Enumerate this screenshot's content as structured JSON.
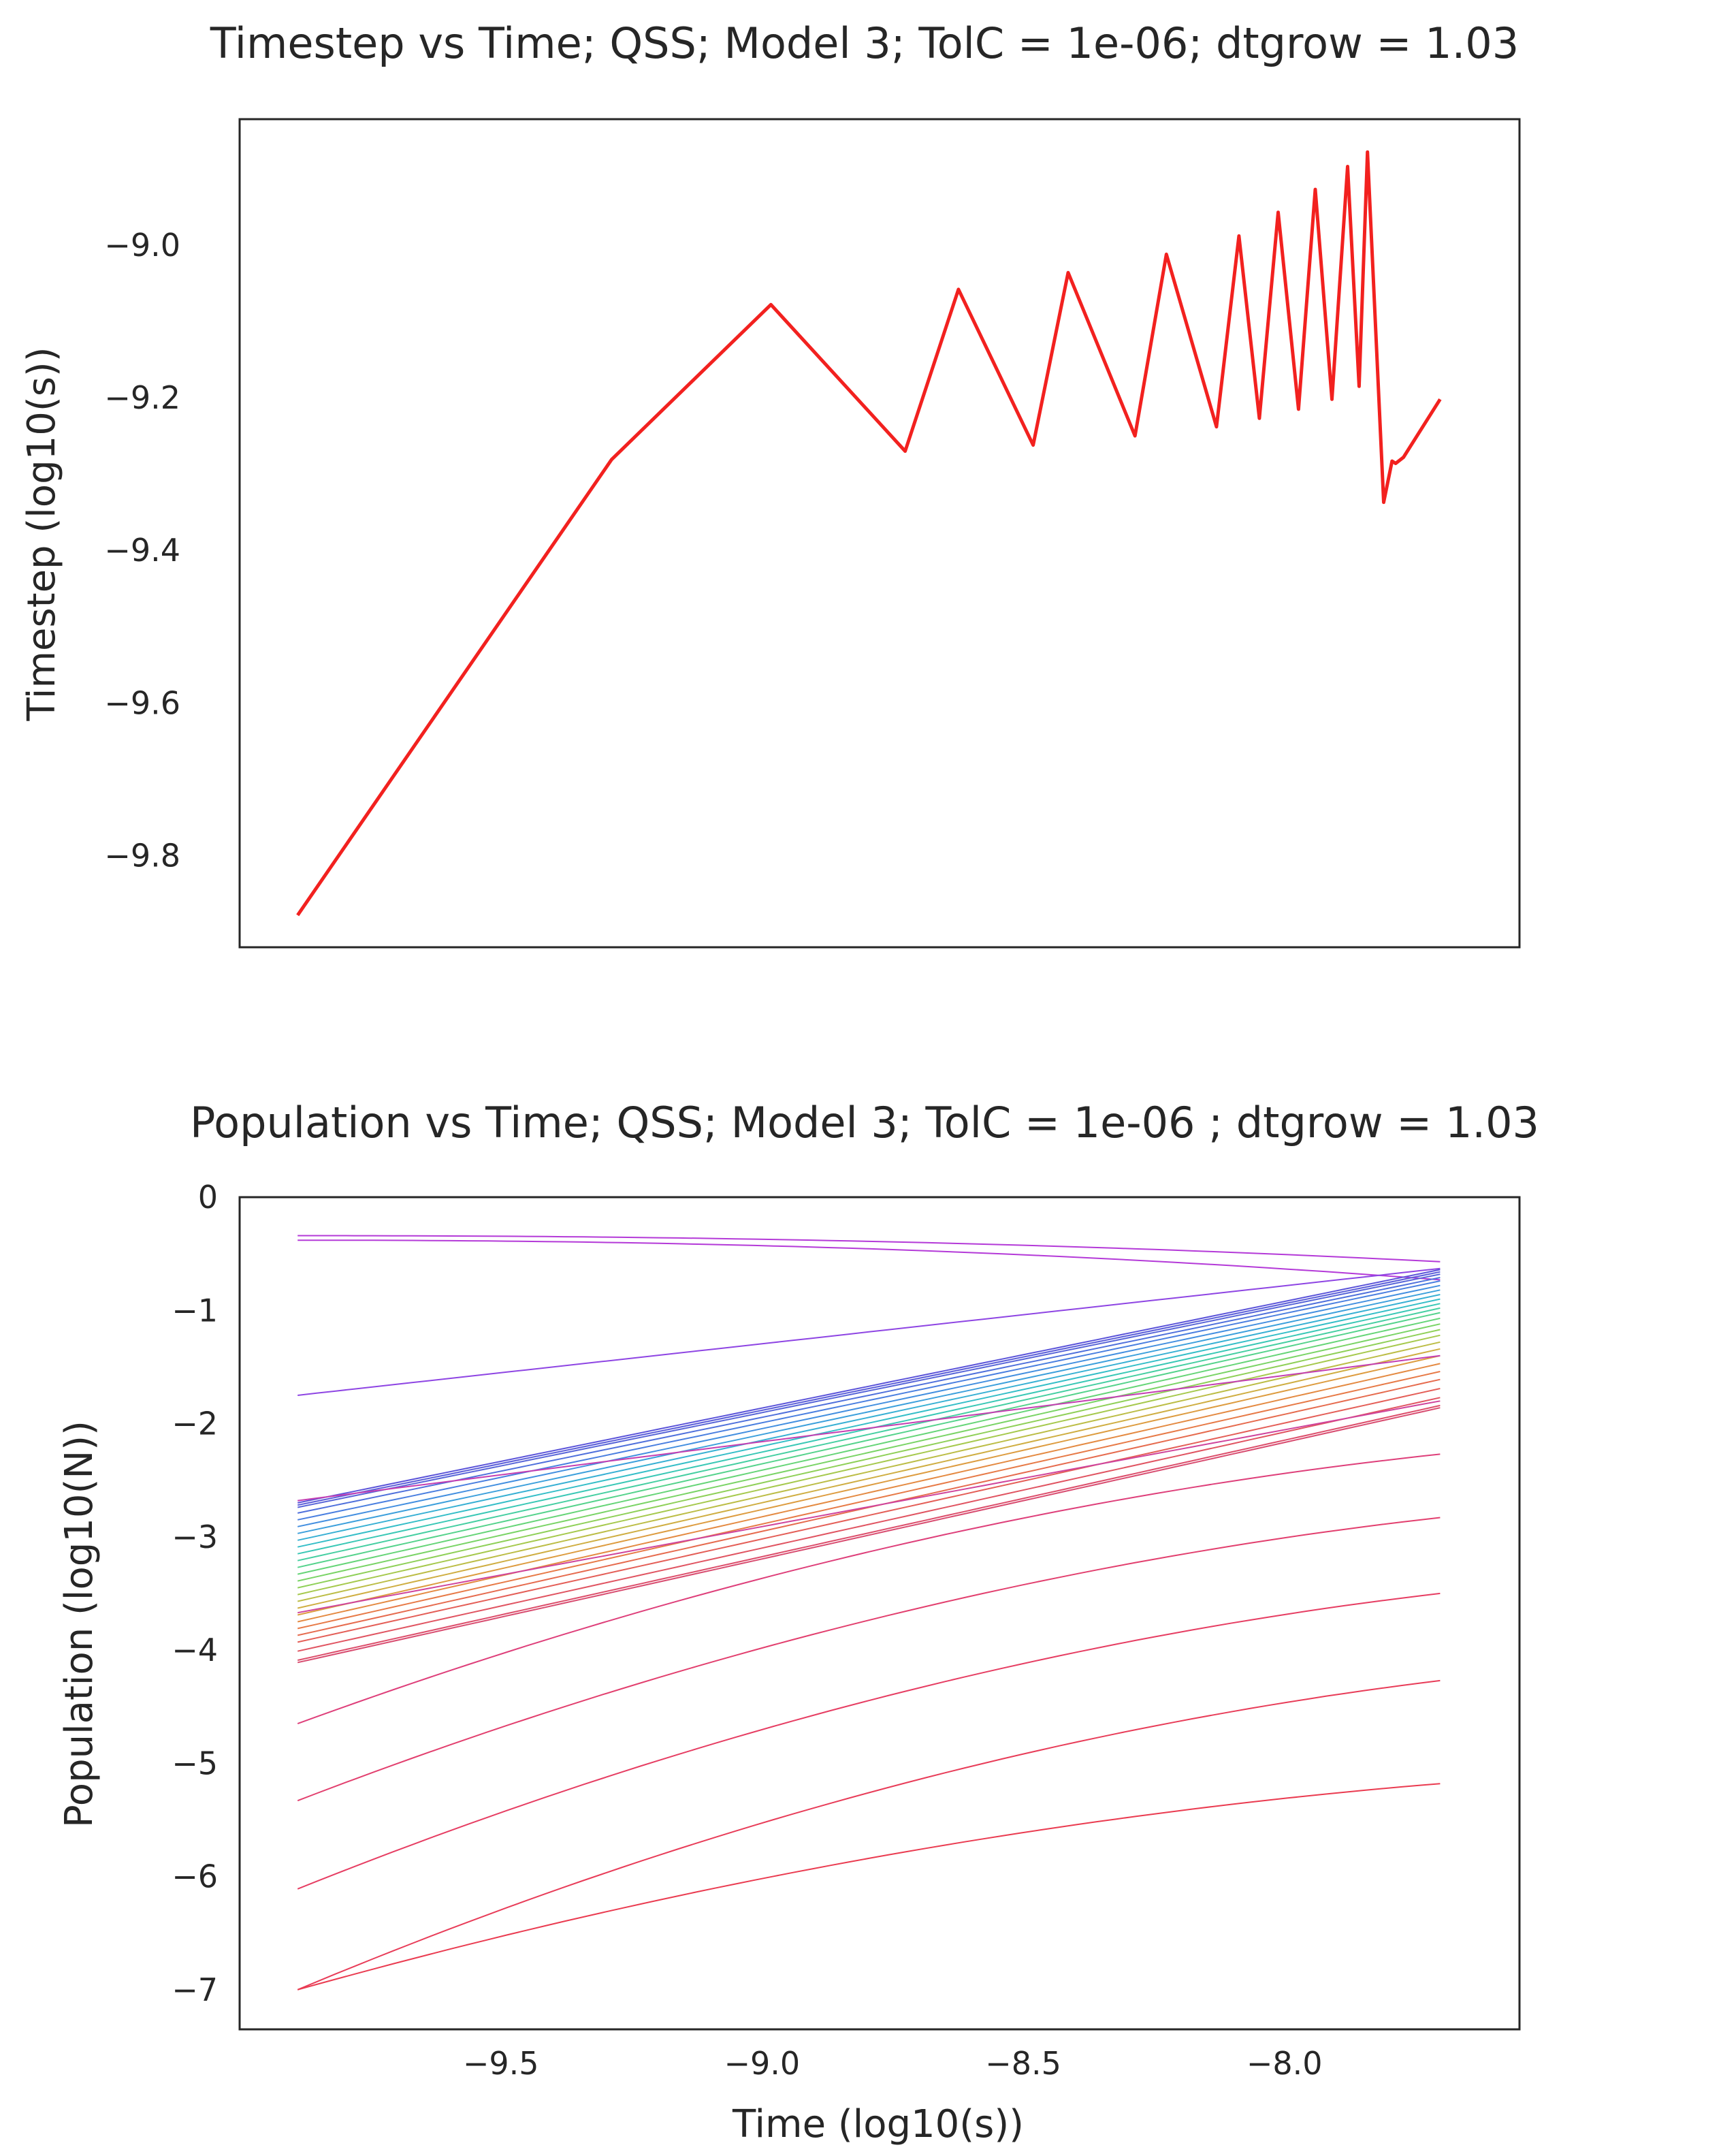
{
  "chart_data": [
    {
      "type": "line",
      "title": "Timestep vs Time; QSS; Model 3; TolC = 1e-06; dtgrow = 1.03",
      "xlabel": "",
      "ylabel": "Timestep (log10(s))",
      "xlim": [
        -10.0,
        -7.55
      ],
      "ylim": [
        -9.92,
        -8.835
      ],
      "yticks": [
        -9.8,
        -9.6,
        -9.4,
        -9.2,
        -9.0
      ],
      "ytick_labels": [
        "−9.8",
        "−9.6",
        "−9.4",
        "−9.2",
        "−9.0"
      ],
      "grid": false,
      "color": "#f2211f",
      "series": [
        {
          "x": [
            -9.889,
            -9.288,
            -8.983,
            -8.726,
            -8.624,
            -8.481,
            -8.414,
            -8.286,
            -8.226,
            -8.13,
            -8.087,
            -8.048,
            -8.012,
            -7.973,
            -7.941,
            -7.909,
            -7.879,
            -7.857,
            -7.841,
            -7.81,
            -7.794,
            -7.787,
            -7.772,
            -7.702
          ],
          "y": [
            -9.878,
            -9.281,
            -9.078,
            -9.27,
            -9.058,
            -9.262,
            -9.036,
            -9.25,
            -9.012,
            -9.238,
            -8.988,
            -9.227,
            -8.957,
            -9.215,
            -8.927,
            -9.202,
            -8.897,
            -9.185,
            -8.878,
            -9.337,
            -9.283,
            -9.286,
            -9.278,
            -9.202
          ]
        }
      ]
    },
    {
      "type": "line",
      "title": "Population vs Time; QSS; Model 3; TolC = 1e-06 ; dtgrow = 1.03",
      "xlabel": "Time (log10(s))",
      "ylabel": "Population (log10(N))",
      "xlim": [
        -10.0,
        -7.55
      ],
      "ylim": [
        -7.35,
        0
      ],
      "xticks": [
        -9.5,
        -9.0,
        -8.5,
        -8.0
      ],
      "xtick_labels": [
        "−9.5",
        "−9.0",
        "−8.5",
        "−8.0"
      ],
      "yticks": [
        -7,
        -6,
        -5,
        -4,
        -3,
        -2,
        -1,
        0
      ],
      "ytick_labels": [
        "−7",
        "−6",
        "−5",
        "−4",
        "−3",
        "−2",
        "−1",
        "0"
      ],
      "grid": false,
      "x_start": -9.889,
      "x_end": -7.702,
      "series": [
        {
          "start": -0.34,
          "end": -0.57,
          "color": "#b43ad8",
          "shape": "flat"
        },
        {
          "start": -0.38,
          "end": -0.73,
          "color": "#b43ad8",
          "shape": "flat"
        },
        {
          "start": -1.75,
          "end": -0.63,
          "color": "#8e45e3",
          "shape": "linear"
        },
        {
          "start": -2.7,
          "end": -0.64,
          "color": "#5b54d9",
          "shape": "linear"
        },
        {
          "start": -2.72,
          "end": -0.66,
          "color": "#5a5cd8",
          "shape": "linear"
        },
        {
          "start": -2.74,
          "end": -0.68,
          "color": "#5865d8",
          "shape": "linear"
        },
        {
          "start": -2.79,
          "end": -0.71,
          "color": "#4f70dc",
          "shape": "linear"
        },
        {
          "start": -2.85,
          "end": -0.74,
          "color": "#4a7fe0",
          "shape": "linear"
        },
        {
          "start": -2.91,
          "end": -0.78,
          "color": "#438fe0",
          "shape": "linear"
        },
        {
          "start": -2.97,
          "end": -0.82,
          "color": "#3da0dc",
          "shape": "linear"
        },
        {
          "start": -3.03,
          "end": -0.86,
          "color": "#38b0d4",
          "shape": "linear"
        },
        {
          "start": -3.09,
          "end": -0.9,
          "color": "#35bec8",
          "shape": "linear"
        },
        {
          "start": -3.15,
          "end": -0.94,
          "color": "#3ac8b6",
          "shape": "linear"
        },
        {
          "start": -3.21,
          "end": -0.98,
          "color": "#46cfa2",
          "shape": "linear"
        },
        {
          "start": -3.27,
          "end": -1.02,
          "color": "#55d38c",
          "shape": "linear"
        },
        {
          "start": -3.33,
          "end": -1.07,
          "color": "#66d578",
          "shape": "linear"
        },
        {
          "start": -3.39,
          "end": -1.12,
          "color": "#7ad466",
          "shape": "linear"
        },
        {
          "start": -3.45,
          "end": -1.17,
          "color": "#8fd058",
          "shape": "linear"
        },
        {
          "start": -3.51,
          "end": -1.22,
          "color": "#a6c94d",
          "shape": "linear"
        },
        {
          "start": -3.57,
          "end": -1.28,
          "color": "#bcbd46",
          "shape": "linear"
        },
        {
          "start": -3.63,
          "end": -1.34,
          "color": "#cfae42",
          "shape": "linear"
        },
        {
          "start": -3.69,
          "end": -1.4,
          "color": "#dd9c40",
          "shape": "linear"
        },
        {
          "start": -3.75,
          "end": -1.47,
          "color": "#e48a42",
          "shape": "linear"
        },
        {
          "start": -3.81,
          "end": -1.54,
          "color": "#e77a47",
          "shape": "linear"
        },
        {
          "start": -3.87,
          "end": -1.61,
          "color": "#e66b4e",
          "shape": "linear"
        },
        {
          "start": -3.93,
          "end": -1.69,
          "color": "#e45e57",
          "shape": "linear"
        },
        {
          "start": -4.01,
          "end": -1.77,
          "color": "#e05461",
          "shape": "linear"
        },
        {
          "start": -4.09,
          "end": -1.84,
          "color": "#dc4d6a",
          "shape": "linear"
        },
        {
          "start": -4.11,
          "end": -1.86,
          "color": "#d84c70",
          "shape": "linear"
        },
        {
          "start": -2.68,
          "end": -1.4,
          "color": "#c43fb2",
          "shape": "linear"
        },
        {
          "start": -3.67,
          "end": -1.8,
          "color": "#cf449c",
          "shape": "linear"
        },
        {
          "start": -4.65,
          "end": -2.27,
          "color": "#de3f7a",
          "shape": "curve"
        },
        {
          "start": -5.33,
          "end": -2.83,
          "color": "#e23f6e",
          "shape": "curve"
        },
        {
          "start": -6.11,
          "end": -3.5,
          "color": "#e63d62",
          "shape": "curve"
        },
        {
          "start": -7.0,
          "end": -4.27,
          "color": "#e83c58",
          "shape": "curve"
        },
        {
          "start": -7.0,
          "end": -5.18,
          "color": "#ea3b50",
          "shape": "curve",
          "offset": true
        }
      ]
    }
  ]
}
